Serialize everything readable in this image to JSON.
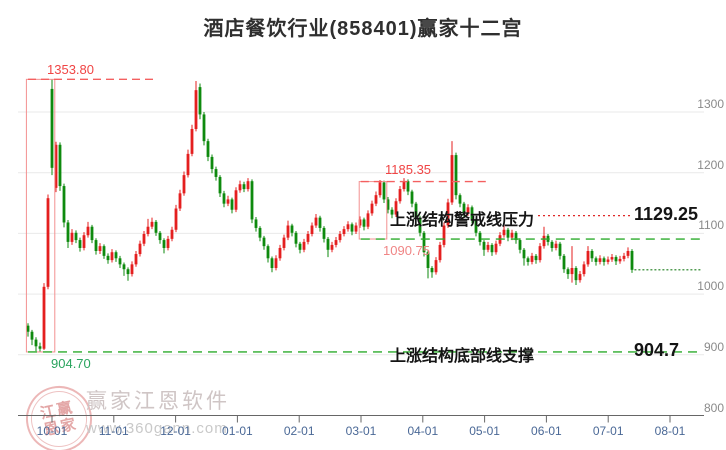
{
  "title": "酒店餐饮行业(858401)赢家十二宫",
  "watermark": {
    "stamp_top": "江赢",
    "stamp_bottom": "恩家",
    "brand": "赢家江恩软件",
    "url": "www.360gann.com"
  },
  "annotations": {
    "high_label": "1353.80",
    "box_low_label": "904.70",
    "mid_high_label": "1185.35",
    "mid_low_label": "1090.75",
    "pressure_text": "上涨结构警戒线压力",
    "pressure_value": "1129.25",
    "support_text": "上涨结构底部线支撑",
    "support_value": "904.7"
  },
  "colors": {
    "up_candle": "#e41f1f",
    "down_candle": "#0e8a0e",
    "dash_red": "#f46060",
    "dash_green": "#2bab2b",
    "dot_red": "#e02828",
    "dot_dark_green": "#1b7d1b",
    "box_border": "#f39090",
    "grid": "#e9e9e9",
    "axis": "#666666",
    "x_label": "#4a6896",
    "y_label": "#8a8a8a"
  },
  "chart_data": {
    "type": "candlestick",
    "title": "酒店餐饮行业(858401)赢家十二宫",
    "x_labels": [
      "10-01",
      "11-01",
      "12-01",
      "01-01",
      "02-01",
      "03-01",
      "04-01",
      "05-01",
      "06-01",
      "07-01",
      "08-01"
    ],
    "y_ticks": [
      1300,
      1200,
      1100,
      1000,
      900,
      800
    ],
    "ylim": [
      800,
      1380
    ],
    "grid": true,
    "levels": {
      "peak_high": 1353.8,
      "mid_peak": 1185.35,
      "pressure_warning": 1129.25,
      "mid_support": 1090.75,
      "bottom_support": 904.7,
      "last_close": 1040
    },
    "level_lines": [
      {
        "value": 1353.8,
        "style": "dash_red",
        "from": 0,
        "to": 32
      },
      {
        "value": 1185.35,
        "style": "dash_red",
        "from": 83.2,
        "to": 114.5
      },
      {
        "value": 1090.75,
        "style": "dash_green",
        "from": 83.2,
        "to": 168.5
      },
      {
        "value": 904.7,
        "style": "dash_green",
        "from": 0,
        "to": 168.5
      },
      {
        "value": 1129.25,
        "style": "dot_red",
        "from": 127.5,
        "to": 151
      },
      {
        "value": 1040,
        "style": "dot_dark_green",
        "from": 151.6,
        "to": 168.5
      }
    ],
    "boxes": [
      {
        "from": 0,
        "to": 6.3,
        "low": 904.7,
        "high": 1353.8
      },
      {
        "from": 83.2,
        "to": 89.3,
        "low": 1090.75,
        "high": 1185.35
      }
    ],
    "candles": [
      [
        948,
        952,
        930,
        938
      ],
      [
        938,
        941,
        916,
        925
      ],
      [
        925,
        929,
        906,
        914
      ],
      [
        914,
        920,
        905,
        910
      ],
      [
        910,
        1018,
        908,
        1012
      ],
      [
        1012,
        1164,
        1008,
        1158
      ],
      [
        1338,
        1353.8,
        1196,
        1208
      ],
      [
        1175,
        1251,
        1168,
        1246
      ],
      [
        1246,
        1250,
        1170,
        1178
      ],
      [
        1178,
        1182,
        1110,
        1118
      ],
      [
        1118,
        1122,
        1076,
        1086
      ],
      [
        1086,
        1107,
        1081,
        1101
      ],
      [
        1101,
        1105,
        1084,
        1089
      ],
      [
        1089,
        1093,
        1070,
        1076
      ],
      [
        1076,
        1102,
        1072,
        1097
      ],
      [
        1097,
        1119,
        1093,
        1111
      ],
      [
        1111,
        1114,
        1084,
        1089
      ],
      [
        1089,
        1092,
        1065,
        1071
      ],
      [
        1071,
        1084,
        1066,
        1079
      ],
      [
        1079,
        1082,
        1058,
        1063
      ],
      [
        1063,
        1067,
        1050,
        1056
      ],
      [
        1056,
        1074,
        1052,
        1069
      ],
      [
        1069,
        1072,
        1053,
        1059
      ],
      [
        1059,
        1063,
        1043,
        1049
      ],
      [
        1049,
        1052,
        1030,
        1041
      ],
      [
        1041,
        1044,
        1022,
        1033
      ],
      [
        1033,
        1054,
        1029,
        1049
      ],
      [
        1049,
        1071,
        1045,
        1066
      ],
      [
        1066,
        1088,
        1062,
        1083
      ],
      [
        1083,
        1104,
        1079,
        1099
      ],
      [
        1099,
        1124,
        1095,
        1111
      ],
      [
        1111,
        1126,
        1107,
        1119
      ],
      [
        1119,
        1122,
        1096,
        1101
      ],
      [
        1101,
        1104,
        1083,
        1089
      ],
      [
        1089,
        1092,
        1067,
        1076
      ],
      [
        1076,
        1096,
        1072,
        1091
      ],
      [
        1091,
        1111,
        1087,
        1106
      ],
      [
        1106,
        1147,
        1102,
        1141
      ],
      [
        1141,
        1172,
        1137,
        1166
      ],
      [
        1166,
        1202,
        1162,
        1196
      ],
      [
        1196,
        1238,
        1192,
        1231
      ],
      [
        1231,
        1279,
        1227,
        1272
      ],
      [
        1272,
        1351,
        1268,
        1336
      ],
      [
        1341,
        1347,
        1288,
        1296
      ],
      [
        1296,
        1300,
        1245,
        1252
      ],
      [
        1252,
        1256,
        1219,
        1226
      ],
      [
        1226,
        1230,
        1199,
        1206
      ],
      [
        1206,
        1210,
        1187,
        1193
      ],
      [
        1193,
        1196,
        1160,
        1166
      ],
      [
        1166,
        1170,
        1143,
        1149
      ],
      [
        1149,
        1162,
        1145,
        1156
      ],
      [
        1156,
        1159,
        1133,
        1139
      ],
      [
        1139,
        1176,
        1135,
        1171
      ],
      [
        1171,
        1187,
        1167,
        1181
      ],
      [
        1181,
        1185,
        1168,
        1173
      ],
      [
        1173,
        1191,
        1169,
        1186
      ],
      [
        1186,
        1189,
        1117,
        1123
      ],
      [
        1123,
        1127,
        1103,
        1109
      ],
      [
        1109,
        1112,
        1087,
        1093
      ],
      [
        1093,
        1096,
        1073,
        1079
      ],
      [
        1079,
        1082,
        1052,
        1059
      ],
      [
        1059,
        1062,
        1036,
        1043
      ],
      [
        1043,
        1064,
        1039,
        1059
      ],
      [
        1059,
        1081,
        1055,
        1076
      ],
      [
        1076,
        1098,
        1072,
        1093
      ],
      [
        1093,
        1121,
        1089,
        1113
      ],
      [
        1113,
        1116,
        1095,
        1101
      ],
      [
        1101,
        1104,
        1077,
        1083
      ],
      [
        1083,
        1086,
        1067,
        1073
      ],
      [
        1073,
        1091,
        1069,
        1086
      ],
      [
        1086,
        1104,
        1082,
        1099
      ],
      [
        1099,
        1118,
        1095,
        1113
      ],
      [
        1113,
        1132,
        1109,
        1126
      ],
      [
        1126,
        1129,
        1103,
        1109
      ],
      [
        1109,
        1112,
        1085,
        1091
      ],
      [
        1091,
        1094,
        1061,
        1073
      ],
      [
        1073,
        1086,
        1069,
        1081
      ],
      [
        1081,
        1094,
        1077,
        1089
      ],
      [
        1089,
        1104,
        1085,
        1099
      ],
      [
        1099,
        1112,
        1095,
        1107
      ],
      [
        1107,
        1120,
        1103,
        1115
      ],
      [
        1115,
        1118,
        1097,
        1103
      ],
      [
        1103,
        1118,
        1099,
        1113
      ],
      [
        1113,
        1128,
        1109,
        1123
      ],
      [
        1123,
        1126,
        1105,
        1111
      ],
      [
        1111,
        1138,
        1107,
        1133
      ],
      [
        1133,
        1154,
        1129,
        1149
      ],
      [
        1149,
        1169,
        1145,
        1163
      ],
      [
        1163,
        1188,
        1159,
        1184
      ],
      [
        1184,
        1187,
        1150,
        1156
      ],
      [
        1156,
        1160,
        1133,
        1139
      ],
      [
        1139,
        1143,
        1125,
        1131
      ],
      [
        1131,
        1158,
        1127,
        1153
      ],
      [
        1153,
        1178,
        1149,
        1173
      ],
      [
        1173,
        1191,
        1169,
        1186
      ],
      [
        1186,
        1189,
        1163,
        1169
      ],
      [
        1169,
        1172,
        1143,
        1149
      ],
      [
        1149,
        1152,
        1120,
        1126
      ],
      [
        1126,
        1129,
        1095,
        1101
      ],
      [
        1101,
        1104,
        1062,
        1069
      ],
      [
        1069,
        1072,
        1026,
        1043
      ],
      [
        1043,
        1046,
        1027,
        1036
      ],
      [
        1036,
        1061,
        1032,
        1056
      ],
      [
        1056,
        1086,
        1052,
        1081
      ],
      [
        1081,
        1118,
        1077,
        1113
      ],
      [
        1113,
        1157,
        1109,
        1151
      ],
      [
        1151,
        1252,
        1147,
        1229
      ],
      [
        1229,
        1233,
        1156,
        1163
      ],
      [
        1163,
        1166,
        1143,
        1149
      ],
      [
        1149,
        1152,
        1127,
        1133
      ],
      [
        1133,
        1148,
        1129,
        1143
      ],
      [
        1143,
        1146,
        1117,
        1123
      ],
      [
        1123,
        1126,
        1095,
        1101
      ],
      [
        1101,
        1104,
        1080,
        1086
      ],
      [
        1086,
        1089,
        1063,
        1073
      ],
      [
        1073,
        1086,
        1069,
        1081
      ],
      [
        1081,
        1084,
        1063,
        1069
      ],
      [
        1069,
        1088,
        1065,
        1083
      ],
      [
        1083,
        1102,
        1079,
        1097
      ],
      [
        1097,
        1113,
        1093,
        1106
      ],
      [
        1106,
        1109,
        1087,
        1093
      ],
      [
        1093,
        1106,
        1089,
        1101
      ],
      [
        1101,
        1104,
        1083,
        1089
      ],
      [
        1089,
        1092,
        1067,
        1073
      ],
      [
        1073,
        1076,
        1047,
        1059
      ],
      [
        1059,
        1062,
        1047,
        1053
      ],
      [
        1053,
        1068,
        1049,
        1063
      ],
      [
        1063,
        1066,
        1050,
        1056
      ],
      [
        1056,
        1084,
        1052,
        1079
      ],
      [
        1079,
        1111,
        1075,
        1096
      ],
      [
        1096,
        1099,
        1080,
        1086
      ],
      [
        1086,
        1089,
        1070,
        1076
      ],
      [
        1076,
        1088,
        1072,
        1083
      ],
      [
        1083,
        1086,
        1057,
        1063
      ],
      [
        1063,
        1066,
        1035,
        1041
      ],
      [
        1041,
        1044,
        1025,
        1033
      ],
      [
        1033,
        1079,
        1019,
        1043
      ],
      [
        1043,
        1046,
        1015,
        1023
      ],
      [
        1023,
        1038,
        1019,
        1033
      ],
      [
        1033,
        1054,
        1029,
        1049
      ],
      [
        1049,
        1079,
        1045,
        1071
      ],
      [
        1071,
        1074,
        1053,
        1059
      ],
      [
        1059,
        1062,
        1047,
        1053
      ],
      [
        1053,
        1064,
        1049,
        1059
      ],
      [
        1059,
        1062,
        1047,
        1053
      ],
      [
        1053,
        1062,
        1049,
        1057
      ],
      [
        1057,
        1066,
        1053,
        1061
      ],
      [
        1061,
        1064,
        1048,
        1054
      ],
      [
        1054,
        1063,
        1050,
        1058
      ],
      [
        1058,
        1068,
        1054,
        1063
      ],
      [
        1063,
        1077,
        1059,
        1071
      ],
      [
        1071,
        1074,
        1035,
        1040
      ]
    ]
  }
}
